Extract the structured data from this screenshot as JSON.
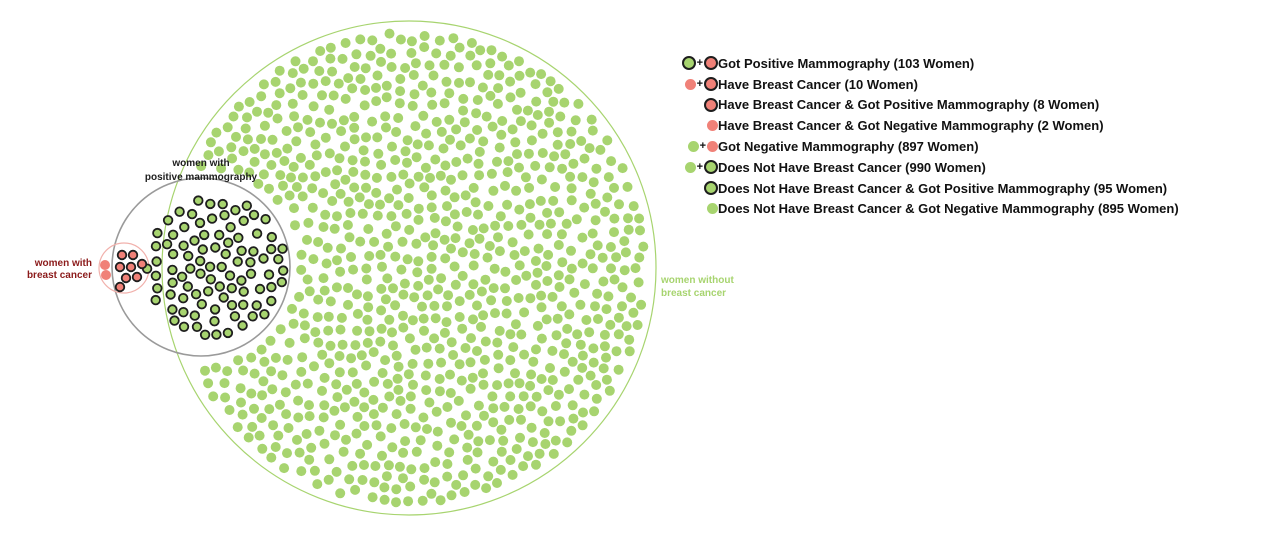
{
  "colors": {
    "green_fill": "#a7d46f",
    "red_fill": "#f08178",
    "outline": "#1e1e1e",
    "big_circle": "#a7d46f",
    "small_circle": "#9a9a9a",
    "red_circle": "#f1b1ac",
    "red_text": "#8b1a1a",
    "green_text": "#a7d46f"
  },
  "labels": {
    "positive_mammography": [
      "women with",
      "positive mammography"
    ],
    "breast_cancer": [
      "women with",
      "breast cancer"
    ],
    "no_breast_cancer": [
      "women without",
      "breast cancer"
    ]
  },
  "chart_data": {
    "type": "venn-dot-diagram",
    "total_women": 1000,
    "groups": [
      {
        "label": "Have Breast Cancer & Got Positive Mammography",
        "count": 8
      },
      {
        "label": "Have Breast Cancer & Got Negative Mammography",
        "count": 2
      },
      {
        "label": "Does Not Have Breast Cancer & Got Positive Mammography",
        "count": 95
      },
      {
        "label": "Does Not Have Breast Cancer & Got Negative Mammography",
        "count": 895
      }
    ]
  },
  "legend": [
    {
      "icons": [
        {
          "fill": "green",
          "outlined": true
        },
        {
          "fill": "red",
          "outlined": true
        }
      ],
      "label": "Got Positive Mammography (103 Women)"
    },
    {
      "icons": [
        {
          "fill": "red",
          "outlined": false
        },
        {
          "fill": "red",
          "outlined": true
        }
      ],
      "label": "Have Breast Cancer (10 Women)"
    },
    {
      "icons": [
        {
          "fill": "red",
          "outlined": true
        }
      ],
      "label": "Have Breast Cancer & Got Positive Mammography (8 Women)"
    },
    {
      "icons": [
        {
          "fill": "red",
          "outlined": false
        }
      ],
      "label": "Have Breast Cancer & Got Negative Mammography (2 Women)"
    },
    {
      "icons": [
        {
          "fill": "green",
          "outlined": false
        },
        {
          "fill": "red",
          "outlined": false
        }
      ],
      "label": "Got Negative Mammography (897 Women)"
    },
    {
      "icons": [
        {
          "fill": "green",
          "outlined": false
        },
        {
          "fill": "green",
          "outlined": true
        }
      ],
      "label": "Does Not Have Breast Cancer (990 Women)"
    },
    {
      "icons": [
        {
          "fill": "green",
          "outlined": true
        }
      ],
      "label": "Does Not Have Breast Cancer & Got Positive Mammography (95 Women)"
    },
    {
      "icons": [
        {
          "fill": "green",
          "outlined": false
        }
      ],
      "label": "Does Not Have Breast Cancer & Got Negative Mammography (895 Women)"
    }
  ]
}
